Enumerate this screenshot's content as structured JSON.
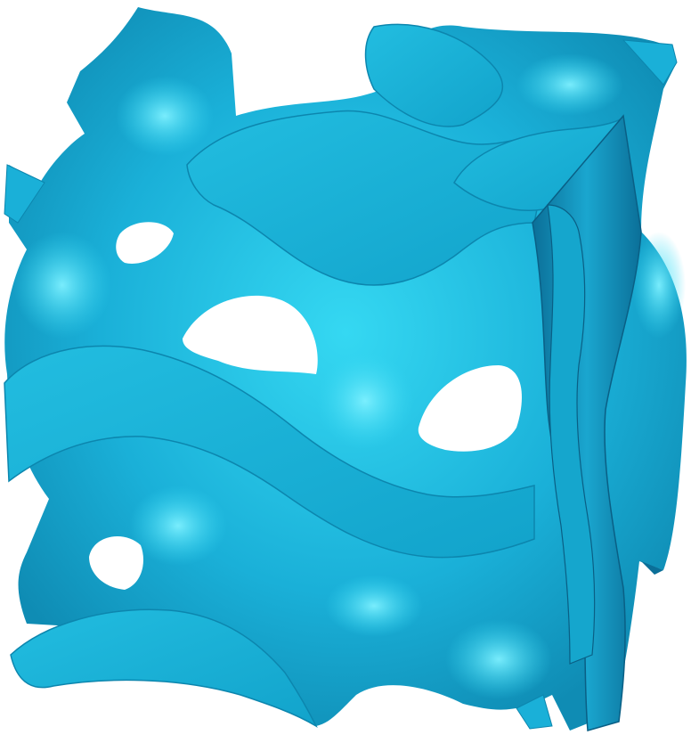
{
  "colors": {
    "background": "#ffffff",
    "surface": "#1ab0d8",
    "surface_light": "#35d8f2",
    "surface_highlight": "#7ef0ff",
    "surface_dark": "#0f8cb4",
    "cut_face": "#15acd2",
    "cut_face_dark": "#0b6f98",
    "hole": "#ffffff"
  },
  "shape_kind": "gyroid-minimal-surface-cube"
}
